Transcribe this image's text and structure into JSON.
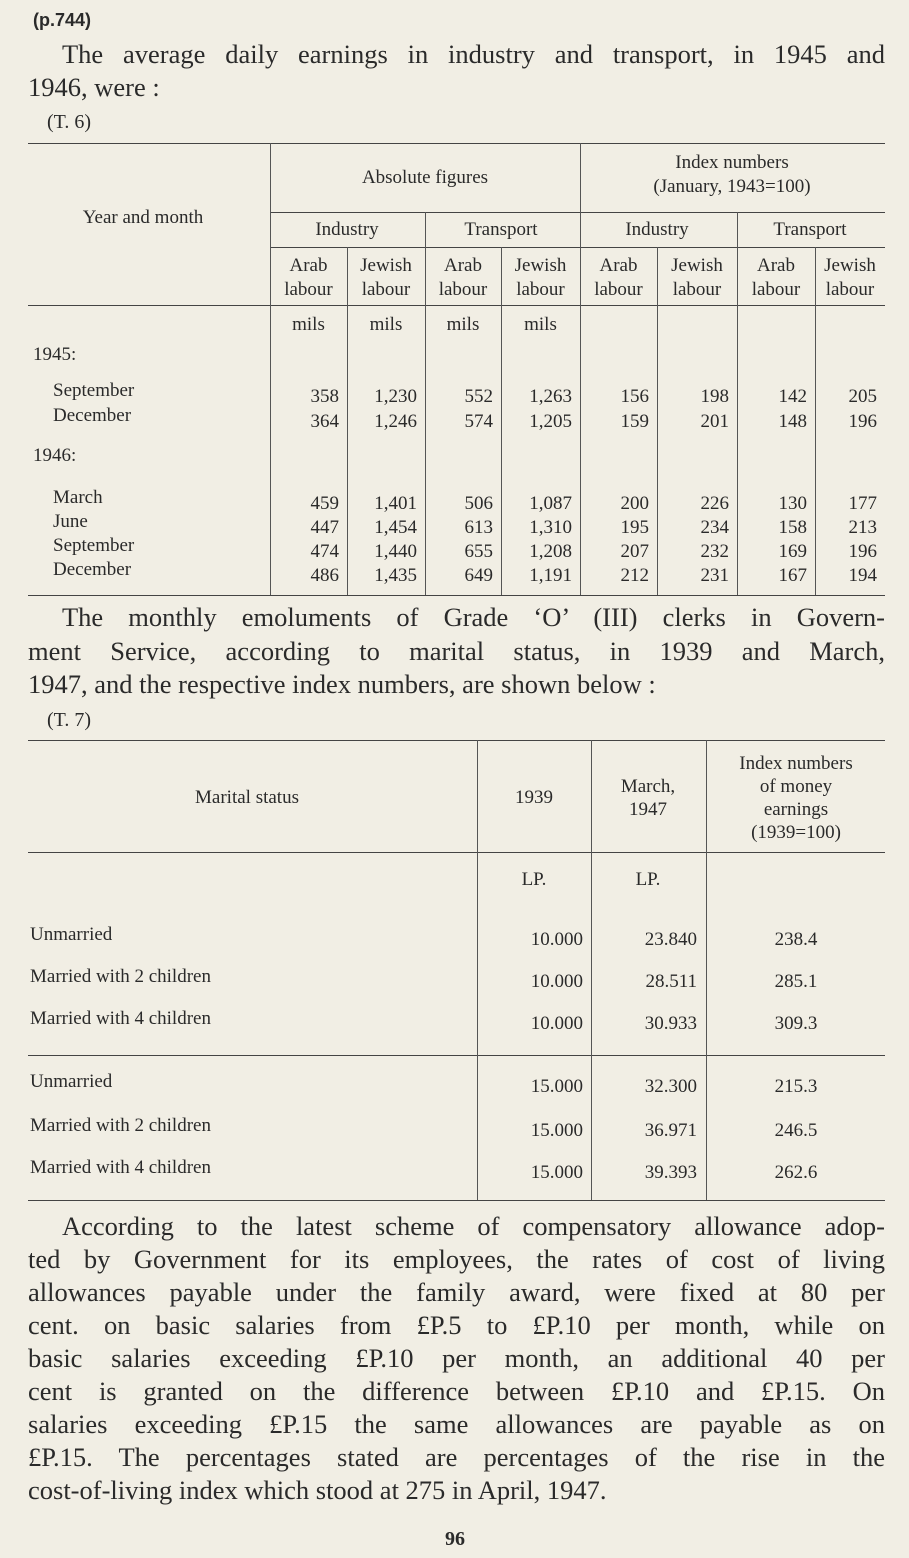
{
  "page_ref": "(p.744)",
  "intro": [
    "The average daily earnings in industry and transport, in 1945 and",
    "1946, were :"
  ],
  "table_1": {
    "label": "(T. 6)",
    "stub_header": "Year and month",
    "group_headers": [
      [
        "Absolute figures"
      ],
      [
        "Index numbers",
        "(January, 1943=100)"
      ]
    ],
    "sub_headers": [
      "Industry",
      "Transport",
      "Industry",
      "Transport"
    ],
    "column_headers": [
      [
        "Arab",
        "labour"
      ],
      [
        "Jewish",
        "labour"
      ],
      [
        "Arab",
        "labour"
      ],
      [
        "Jewish",
        "labour"
      ],
      [
        "Arab",
        "labour"
      ],
      [
        "Jewish",
        "labour"
      ],
      [
        "Arab",
        "labour"
      ],
      [
        "Jewish",
        "labour"
      ]
    ],
    "units": [
      "mils",
      "mils",
      "mils",
      "mils"
    ],
    "sections": [
      {
        "year": "1945:",
        "rows": [
          {
            "month": "September",
            "values": [
              "358",
              "1,230",
              "552",
              "1,263",
              "156",
              "198",
              "142",
              "205"
            ]
          },
          {
            "month": "December",
            "values": [
              "364",
              "1,246",
              "574",
              "1,205",
              "159",
              "201",
              "148",
              "196"
            ]
          }
        ]
      },
      {
        "year": "1946:",
        "rows": [
          {
            "month": "March",
            "values": [
              "459",
              "1,401",
              "506",
              "1,087",
              "200",
              "226",
              "130",
              "177"
            ]
          },
          {
            "month": "June",
            "values": [
              "447",
              "1,454",
              "613",
              "1,310",
              "195",
              "234",
              "158",
              "213"
            ]
          },
          {
            "month": "September",
            "values": [
              "474",
              "1,440",
              "655",
              "1,208",
              "207",
              "232",
              "169",
              "196"
            ]
          },
          {
            "month": "December",
            "values": [
              "486",
              "1,435",
              "649",
              "1,191",
              "212",
              "231",
              "167",
              "194"
            ]
          }
        ]
      }
    ]
  },
  "paragraph_2": [
    "The monthly emoluments of Grade ‘O’ (III) clerks in Govern-",
    "ment Service, according to marital status, in 1939 and March,",
    "1947, and the respective index numbers, are shown below :"
  ],
  "table_2": {
    "label": "(T. 7)",
    "headers": [
      [
        "Marital status"
      ],
      [
        "1939"
      ],
      [
        "March,",
        "1947"
      ],
      [
        "Index numbers",
        "of money",
        "earnings",
        "(1939=100)"
      ]
    ],
    "units": [
      "LP.",
      "LP."
    ],
    "groups": [
      [
        {
          "status": "Unmarried",
          "values": [
            "10.000",
            "23.840",
            "238.4"
          ]
        },
        {
          "status": "Married with 2 children",
          "values": [
            "10.000",
            "28.511",
            "285.1"
          ]
        },
        {
          "status": "Married with 4 children",
          "values": [
            "10.000",
            "30.933",
            "309.3"
          ]
        }
      ],
      [
        {
          "status": "Unmarried",
          "values": [
            "15.000",
            "32.300",
            "215.3"
          ]
        },
        {
          "status": "Married with 2 children",
          "values": [
            "15.000",
            "36.971",
            "246.5"
          ]
        },
        {
          "status": "Married with 4 children",
          "values": [
            "15.000",
            "39.393",
            "262.6"
          ]
        }
      ]
    ]
  },
  "paragraph_3": [
    "According to the latest scheme of compensatory allowance adop-",
    "ted by Government for its employees, the rates of cost of living",
    "allowances payable under the family award, were fixed at 80 per",
    "cent. on basic salaries from £P.5 to £P.10 per month, while on",
    "basic salaries exceeding £P.10 per month, an additional 40 per",
    "cent is granted on the difference between £P.10 and £P.15.  On",
    "salaries exceeding £P.15 the same allowances are payable as on",
    "£P.15.  The percentages stated are percentages of the rise in the",
    "cost-of-living index which stood at 275 in April, 1947."
  ],
  "page_number": "96"
}
